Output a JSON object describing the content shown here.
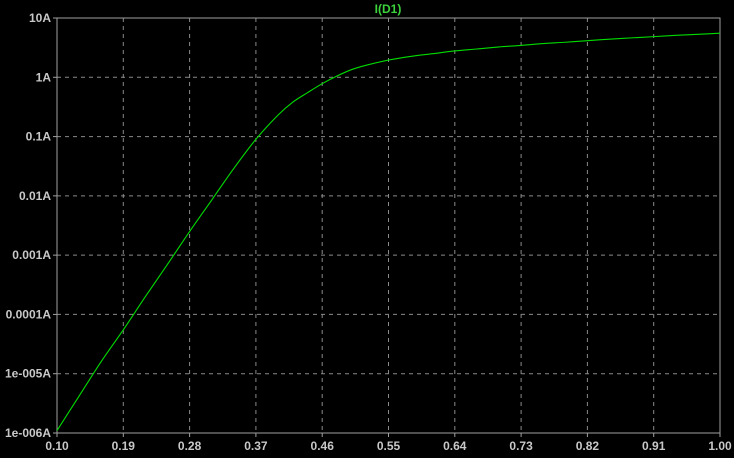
{
  "chart_data": {
    "type": "line",
    "title": "I(D1)",
    "xlabel": "",
    "ylabel": "",
    "xscale": "linear",
    "yscale": "log",
    "xlim": [
      0.1,
      1.0
    ],
    "ylim": [
      1e-06,
      10
    ],
    "grid": true,
    "legend": "none",
    "x_ticks": [
      "0.10",
      "0.19",
      "0.28",
      "0.37",
      "0.46",
      "0.55",
      "0.64",
      "0.73",
      "0.82",
      "0.91",
      "1.00"
    ],
    "y_ticks": [
      "10A",
      "1A",
      "0.1A",
      "0.01A",
      "0.001A",
      "0.0001A",
      "1e-005A",
      "1e-006A"
    ],
    "series": [
      {
        "name": "I(D1)",
        "x": [
          0.1,
          0.13,
          0.16,
          0.19,
          0.22,
          0.25,
          0.28,
          0.31,
          0.34,
          0.37,
          0.4,
          0.42,
          0.44,
          0.46,
          0.48,
          0.5,
          0.52,
          0.55,
          0.58,
          0.61,
          0.64,
          0.67,
          0.7,
          0.73,
          0.76,
          0.79,
          0.82,
          0.85,
          0.88,
          0.91,
          0.94,
          0.97,
          1.0
        ],
        "y": [
          1.1e-06,
          4.2e-06,
          1.6e-05,
          5.5e-05,
          0.0002,
          0.0007,
          0.0025,
          0.0085,
          0.029,
          0.09,
          0.23,
          0.38,
          0.55,
          0.78,
          1.05,
          1.35,
          1.6,
          1.95,
          2.25,
          2.5,
          2.78,
          3.0,
          3.25,
          3.45,
          3.7,
          3.9,
          4.15,
          4.4,
          4.62,
          4.85,
          5.1,
          5.3,
          5.55
        ]
      }
    ],
    "colors": {
      "background": "#000000",
      "trace": "#00dc00",
      "title": "#3cd23c",
      "grid": "#8a8a8a",
      "text": "#c8c8c8"
    }
  }
}
